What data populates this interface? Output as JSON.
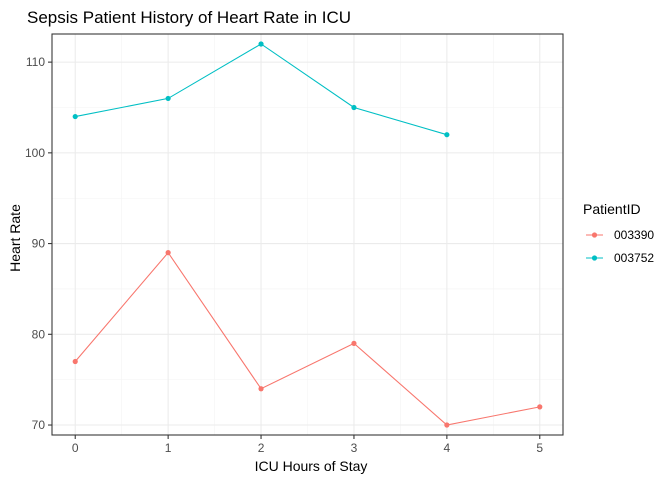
{
  "chart_data": {
    "type": "line",
    "title": "Sepsis Patient History of Heart Rate in ICU",
    "xlabel": "ICU Hours of Stay",
    "ylabel": "Heart Rate",
    "x_ticks": [
      0,
      1,
      2,
      3,
      4,
      5
    ],
    "y_ticks": [
      70,
      80,
      90,
      100,
      110
    ],
    "xlim": [
      -0.25,
      5.25
    ],
    "ylim": [
      68.9,
      113.1
    ],
    "grid": true,
    "legend": {
      "title": "PatientID",
      "position": "right"
    },
    "series": [
      {
        "name": "003390",
        "color": "#F8766D",
        "x": [
          0,
          1,
          2,
          3,
          4,
          5
        ],
        "y": [
          77,
          89,
          74,
          79,
          70,
          72
        ]
      },
      {
        "name": "003752",
        "color": "#00BFC4",
        "x": [
          0,
          1,
          2,
          3,
          4
        ],
        "y": [
          104,
          106,
          112,
          105,
          102
        ]
      }
    ]
  }
}
